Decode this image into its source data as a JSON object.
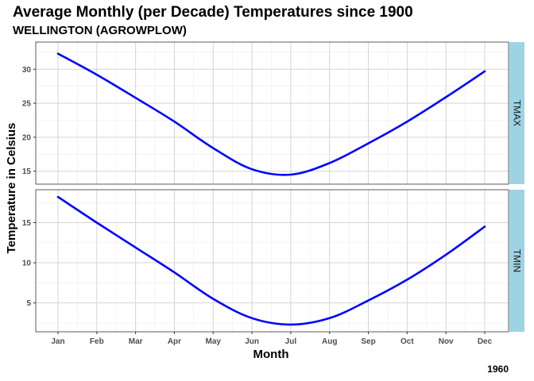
{
  "chart_data": {
    "type": "line",
    "title": "Average Monthly (per Decade) Temperatures since 1900",
    "subtitle": "WELLINGTON (AGROWPLOW)",
    "caption": "1960",
    "xlabel": "Month",
    "ylabel": "Temperature in Celsius",
    "categories": [
      "Jan",
      "Feb",
      "Mar",
      "Apr",
      "May",
      "Jun",
      "Jul",
      "Aug",
      "Sep",
      "Oct",
      "Nov",
      "Dec"
    ],
    "line_color": "#0000ff",
    "strip_color": "#9ed3e3",
    "panels": [
      {
        "name": "TMAX",
        "values": [
          32.3,
          29.2,
          25.8,
          22.3,
          18.4,
          15.3,
          14.5,
          16.2,
          19.1,
          22.3,
          25.9,
          29.7
        ],
        "ylim": [
          13.1,
          34.0
        ],
        "yticks": [
          15,
          20,
          25,
          30
        ]
      },
      {
        "name": "TMIN",
        "values": [
          18.2,
          15.0,
          11.9,
          8.8,
          5.5,
          3.1,
          2.3,
          3.1,
          5.3,
          7.9,
          11.0,
          14.5
        ],
        "ylim": [
          1.4,
          19.1
        ],
        "yticks": [
          5,
          10,
          15
        ]
      }
    ]
  }
}
